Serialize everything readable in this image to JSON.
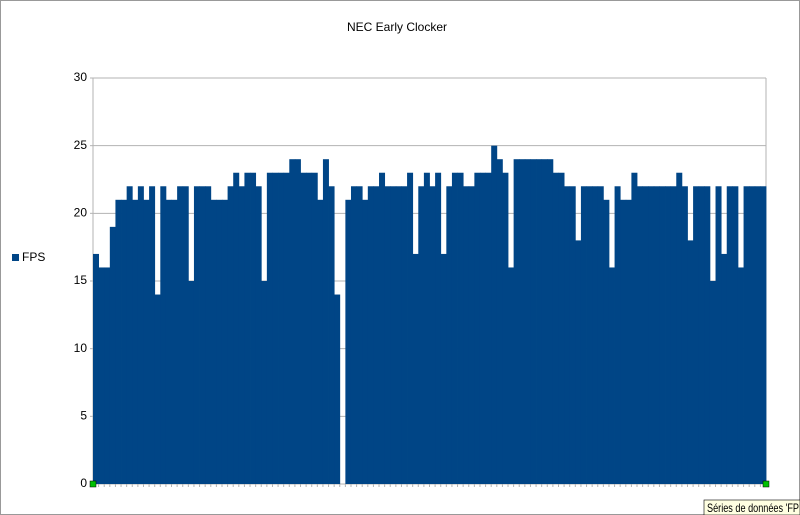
{
  "chart_data": {
    "type": "bar",
    "title": "NEC Early Clocker",
    "series": [
      {
        "name": "FPS",
        "color": "#004586",
        "values": [
          17,
          16,
          16,
          19,
          21,
          21,
          22,
          21,
          22,
          21,
          22,
          14,
          22,
          21,
          21,
          22,
          22,
          15,
          22,
          22,
          22,
          21,
          21,
          21,
          22,
          23,
          22,
          23,
          23,
          22,
          15,
          23,
          23,
          23,
          23,
          24,
          24,
          23,
          23,
          23,
          21,
          24,
          22,
          14,
          0,
          21,
          22,
          22,
          21,
          22,
          22,
          23,
          22,
          22,
          22,
          22,
          23,
          17,
          22,
          23,
          22,
          23,
          17,
          22,
          23,
          23,
          22,
          22,
          23,
          23,
          23,
          25,
          24,
          23,
          16,
          24,
          24,
          24,
          24,
          24,
          24,
          24,
          23,
          23,
          22,
          22,
          18,
          22,
          22,
          22,
          22,
          21,
          16,
          22,
          21,
          21,
          23,
          22,
          22,
          22,
          22,
          22,
          22,
          22,
          23,
          22,
          18,
          22,
          22,
          22,
          15,
          22,
          17,
          22,
          22,
          16,
          22,
          22,
          22,
          22
        ]
      }
    ],
    "ylim": [
      0,
      30
    ],
    "yticks": [
      0,
      5,
      10,
      15,
      20,
      25,
      30
    ],
    "grid": true,
    "legend": "left",
    "tooltip": "Séries de données 'FP"
  }
}
